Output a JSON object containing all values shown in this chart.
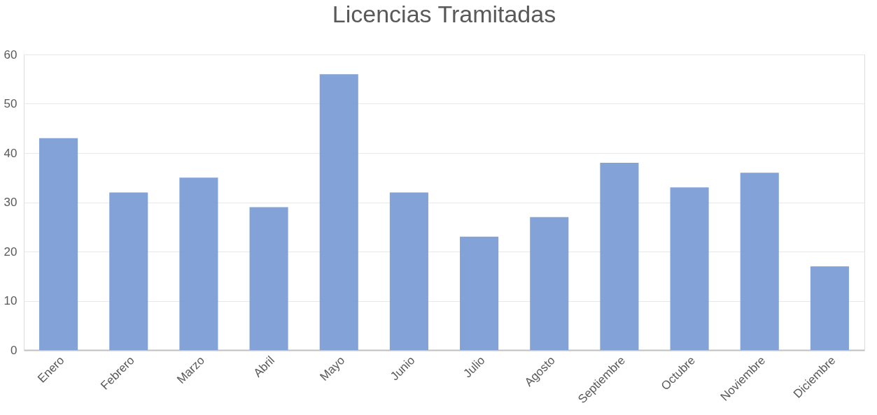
{
  "chart_data": {
    "type": "bar",
    "title": "Licencias Tramitadas",
    "categories": [
      "Enero",
      "Febrero",
      "Marzo",
      "Abril",
      "Mayo",
      "Junio",
      "Julio",
      "Agosto",
      "Septiembre",
      "Octubre",
      "Noviembre",
      "Diciembre"
    ],
    "values": [
      43,
      32,
      35,
      29,
      56,
      32,
      23,
      27,
      38,
      33,
      36,
      17
    ],
    "color": "#7b9dd6",
    "ylim": [
      0,
      60
    ],
    "yticks": [
      0,
      10,
      20,
      30,
      40,
      50,
      60
    ],
    "grid": "y"
  }
}
